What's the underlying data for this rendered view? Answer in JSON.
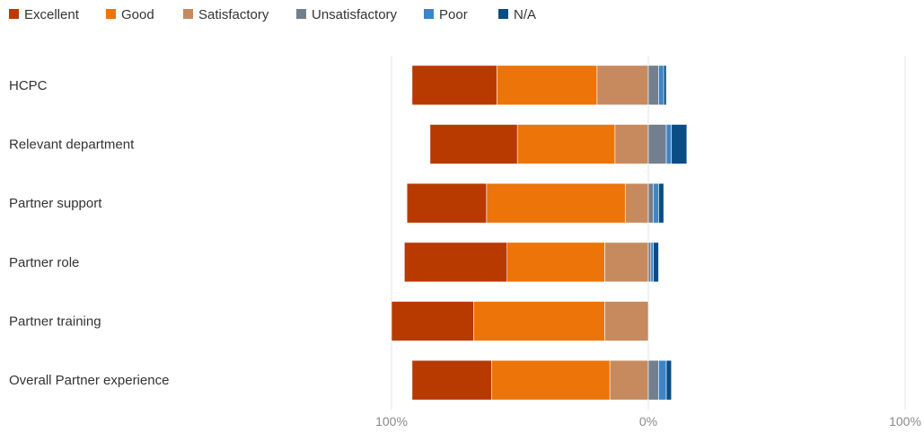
{
  "chart_data": {
    "type": "bar",
    "orientation": "horizontal-diverging",
    "categories": [
      "HCPC",
      "Relevant department",
      "Partner support",
      "Partner role",
      "Partner training",
      "Overall Partner experience"
    ],
    "series": [
      {
        "name": "Excellent",
        "color": "#b83a00",
        "values": [
          33,
          34,
          31,
          40,
          32,
          31
        ]
      },
      {
        "name": "Good",
        "color": "#ed7408",
        "values": [
          39,
          38,
          54,
          38,
          51,
          46
        ]
      },
      {
        "name": "Satisfactory",
        "color": "#c68a5e",
        "values": [
          20,
          13,
          9,
          17,
          17,
          15
        ]
      },
      {
        "name": "Unsatisfactory",
        "color": "#737f8e",
        "values": [
          4,
          7,
          2,
          1,
          0,
          4
        ]
      },
      {
        "name": "Poor",
        "color": "#3d85c6",
        "values": [
          2,
          2,
          2,
          1,
          0,
          3
        ]
      },
      {
        "name": "N/A",
        "color": "#0a4d84",
        "values": [
          1,
          6,
          2,
          2,
          0,
          2
        ]
      }
    ],
    "negative_series": [
      "Excellent",
      "Good",
      "Satisfactory"
    ],
    "positive_series": [
      "Unsatisfactory",
      "Poor",
      "N/A"
    ],
    "xlim": [
      -100,
      100
    ],
    "x_ticks": [
      {
        "value": -100,
        "label": "100%"
      },
      {
        "value": 0,
        "label": "0%"
      },
      {
        "value": 100,
        "label": "100%"
      }
    ],
    "grid": true,
    "legend_position": "top-left"
  }
}
